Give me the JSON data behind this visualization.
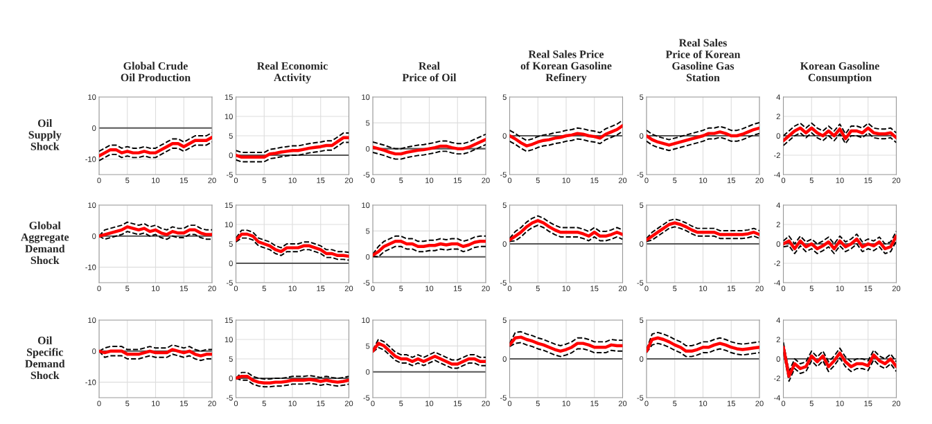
{
  "chart_data": [
    {
      "type": "line",
      "title": "Global Crude\nOil Production",
      "ylabel": "Oil\nSupply\nShock",
      "x": [
        0,
        1,
        2,
        3,
        4,
        5,
        6,
        7,
        8,
        9,
        10,
        11,
        12,
        13,
        14,
        15,
        16,
        17,
        18,
        19,
        20
      ],
      "xlim": [
        0,
        20
      ],
      "xticks": [
        0,
        5,
        10,
        15,
        20
      ],
      "ylim": [
        -15,
        10
      ],
      "yticks": [
        -10,
        0,
        10
      ],
      "grid": true,
      "ref_lines": [
        {
          "axis": "y",
          "value": 0,
          "color": "#555555"
        }
      ],
      "series": [
        {
          "color": "#ff0000",
          "line_style": "solid",
          "values": [
            -9,
            -8,
            -7,
            -7,
            -8,
            -7.5,
            -8,
            -8,
            -7.5,
            -8,
            -8,
            -7,
            -6,
            -5,
            -5,
            -6,
            -5,
            -4,
            -4,
            -4,
            -3
          ]
        },
        {
          "color": "#000000",
          "line_style": "dashed",
          "values": [
            -7.5,
            -6.5,
            -5.5,
            -5.5,
            -6.5,
            -6,
            -6.5,
            -6.5,
            -6,
            -6.5,
            -6.5,
            -5.5,
            -4.5,
            -3.5,
            -3.5,
            -4.5,
            -3.5,
            -2.5,
            -2.5,
            -2.5,
            -1.5
          ]
        },
        {
          "color": "#000000",
          "line_style": "dashed",
          "values": [
            -10.5,
            -9.5,
            -8.5,
            -8.5,
            -9.5,
            -9,
            -9.5,
            -9.5,
            -9,
            -9.5,
            -9.5,
            -8.5,
            -7.5,
            -6.5,
            -6.5,
            -7.5,
            -6.5,
            -5.5,
            -5.5,
            -5.5,
            -4.5
          ]
        }
      ]
    },
    {
      "type": "line",
      "title": "Real Economic\nActivity",
      "x": [
        0,
        1,
        2,
        3,
        4,
        5,
        6,
        7,
        8,
        9,
        10,
        11,
        12,
        13,
        14,
        15,
        16,
        17,
        18,
        19,
        20
      ],
      "xlim": [
        0,
        20
      ],
      "xticks": [
        0,
        5,
        10,
        15,
        20
      ],
      "ylim": [
        -5,
        15
      ],
      "yticks": [
        -5,
        0,
        5,
        10,
        15
      ],
      "grid": true,
      "ref_lines": [
        {
          "axis": "y",
          "value": 0,
          "color": "#555555"
        }
      ],
      "series": [
        {
          "color": "#ff0000",
          "line_style": "solid",
          "values": [
            0,
            -0.5,
            -0.5,
            -0.5,
            -0.5,
            -0.5,
            0.3,
            0.5,
            0.8,
            1,
            1.2,
            1.2,
            1.5,
            1.8,
            2,
            2.2,
            2.5,
            2.5,
            3.5,
            4.5,
            4.5
          ]
        },
        {
          "color": "#000000",
          "line_style": "dashed",
          "values": [
            1.2,
            0.7,
            0.7,
            0.7,
            0.7,
            0.7,
            1.5,
            1.7,
            2,
            2.2,
            2.4,
            2.4,
            2.7,
            3,
            3.2,
            3.4,
            3.7,
            3.7,
            4.7,
            5.7,
            5.7
          ]
        },
        {
          "color": "#000000",
          "line_style": "dashed",
          "values": [
            -1.2,
            -1.7,
            -1.7,
            -1.7,
            -1.7,
            -1.7,
            -0.9,
            -0.7,
            -0.4,
            -0.2,
            0,
            0,
            0.3,
            0.6,
            0.8,
            1,
            1.3,
            1.3,
            2.3,
            3.3,
            3.3
          ]
        }
      ]
    },
    {
      "type": "line",
      "title": "Real\nPrice of Oil",
      "x": [
        0,
        1,
        2,
        3,
        4,
        5,
        6,
        7,
        8,
        9,
        10,
        11,
        12,
        13,
        14,
        15,
        16,
        17,
        18,
        19,
        20
      ],
      "xlim": [
        0,
        20
      ],
      "xticks": [
        0,
        5,
        10,
        15,
        20
      ],
      "ylim": [
        -5,
        10
      ],
      "yticks": [
        -5,
        0,
        5,
        10
      ],
      "grid": true,
      "ref_lines": [
        {
          "axis": "y",
          "value": 0,
          "color": "#555555"
        }
      ],
      "series": [
        {
          "color": "#ff0000",
          "line_style": "solid",
          "values": [
            0.3,
            0,
            -0.3,
            -0.7,
            -1,
            -1,
            -0.7,
            -0.5,
            -0.3,
            -0.2,
            0,
            0.2,
            0.5,
            0.5,
            0.2,
            0,
            0,
            0.3,
            0.8,
            1.3,
            1.8
          ]
        },
        {
          "color": "#000000",
          "line_style": "dashed",
          "values": [
            1.3,
            1,
            0.7,
            0.3,
            0,
            0,
            0.3,
            0.5,
            0.7,
            0.8,
            1,
            1.2,
            1.5,
            1.5,
            1.2,
            1,
            1,
            1.3,
            1.8,
            2.3,
            2.8
          ]
        },
        {
          "color": "#000000",
          "line_style": "dashed",
          "values": [
            -0.7,
            -1,
            -1.3,
            -1.7,
            -2,
            -2,
            -1.7,
            -1.5,
            -1.3,
            -1.2,
            -1,
            -0.8,
            -0.5,
            -0.5,
            -0.8,
            -1,
            -1,
            -0.7,
            -0.2,
            0.3,
            0.8
          ]
        }
      ]
    },
    {
      "type": "line",
      "title": "Real Sales Price\nof Korean Gasoline\nRefinery",
      "x": [
        0,
        1,
        2,
        3,
        4,
        5,
        6,
        7,
        8,
        9,
        10,
        11,
        12,
        13,
        14,
        15,
        16,
        17,
        18,
        19,
        20
      ],
      "xlim": [
        0,
        20
      ],
      "xticks": [
        0,
        5,
        10,
        15,
        20
      ],
      "ylim": [
        -5,
        5
      ],
      "yticks": [
        -5,
        0,
        5
      ],
      "grid": true,
      "ref_lines": [
        {
          "axis": "y",
          "value": 0,
          "color": "#555555"
        }
      ],
      "series": [
        {
          "color": "#ff0000",
          "line_style": "solid",
          "values": [
            0,
            -0.4,
            -0.9,
            -1.3,
            -1.1,
            -0.8,
            -0.6,
            -0.5,
            -0.3,
            -0.2,
            0,
            0.1,
            0.3,
            0.2,
            0,
            -0.1,
            -0.3,
            0.2,
            0.5,
            0.8,
            1.3
          ]
        },
        {
          "color": "#000000",
          "line_style": "dashed",
          "values": [
            0.7,
            0.3,
            -0.2,
            -0.6,
            -0.4,
            -0.1,
            0.1,
            0.2,
            0.4,
            0.5,
            0.7,
            0.8,
            1,
            0.9,
            0.7,
            0.6,
            0.4,
            0.9,
            1.2,
            1.5,
            2
          ]
        },
        {
          "color": "#000000",
          "line_style": "dashed",
          "values": [
            -0.7,
            -1.1,
            -1.6,
            -2,
            -1.8,
            -1.5,
            -1.3,
            -1.2,
            -1,
            -0.9,
            -0.7,
            -0.6,
            -0.4,
            -0.5,
            -0.7,
            -0.8,
            -1,
            -0.5,
            -0.2,
            0.1,
            0.6
          ]
        }
      ]
    },
    {
      "type": "line",
      "title": "Real Sales\nPrice of Korean\nGasoline Gas\nStation",
      "x": [
        0,
        1,
        2,
        3,
        4,
        5,
        6,
        7,
        8,
        9,
        10,
        11,
        12,
        13,
        14,
        15,
        16,
        17,
        18,
        19,
        20
      ],
      "xlim": [
        0,
        20
      ],
      "xticks": [
        0,
        5,
        10,
        15,
        20
      ],
      "ylim": [
        -5,
        5
      ],
      "yticks": [
        -5,
        0,
        5
      ],
      "grid": true,
      "ref_lines": [
        {
          "axis": "y",
          "value": 0,
          "color": "#555555"
        }
      ],
      "series": [
        {
          "color": "#ff0000",
          "line_style": "solid",
          "values": [
            0,
            -0.5,
            -0.8,
            -1,
            -1.2,
            -1,
            -0.8,
            -0.6,
            -0.4,
            -0.2,
            0,
            0.3,
            0.3,
            0.5,
            0.3,
            0,
            0,
            0.2,
            0.5,
            0.8,
            1
          ]
        },
        {
          "color": "#000000",
          "line_style": "dashed",
          "values": [
            0.7,
            0.2,
            -0.1,
            -0.3,
            -0.5,
            -0.3,
            -0.1,
            0.1,
            0.3,
            0.5,
            0.7,
            1,
            1,
            1.2,
            1,
            0.7,
            0.7,
            0.9,
            1.2,
            1.5,
            1.7
          ]
        },
        {
          "color": "#000000",
          "line_style": "dashed",
          "values": [
            -0.7,
            -1.2,
            -1.5,
            -1.7,
            -1.9,
            -1.7,
            -1.5,
            -1.3,
            -1.1,
            -0.9,
            -0.7,
            -0.4,
            -0.4,
            -0.2,
            -0.4,
            -0.7,
            -0.7,
            -0.5,
            -0.2,
            0.1,
            0.3
          ]
        }
      ]
    },
    {
      "type": "line",
      "title": "Korean Gasoline\nConsumption",
      "x": [
        0,
        1,
        2,
        3,
        4,
        5,
        6,
        7,
        8,
        9,
        10,
        11,
        12,
        13,
        14,
        15,
        16,
        17,
        18,
        19,
        20
      ],
      "xlim": [
        0,
        20
      ],
      "xticks": [
        0,
        5,
        10,
        15,
        20
      ],
      "ylim": [
        -4,
        4
      ],
      "yticks": [
        -4,
        -2,
        0,
        2,
        4
      ],
      "grid": true,
      "ref_lines": [
        {
          "axis": "y",
          "value": 0,
          "color": "#555555"
        }
      ],
      "series": [
        {
          "color": "#ff0000",
          "line_style": "solid",
          "values": [
            -0.5,
            0,
            0.5,
            0.8,
            0.3,
            0.8,
            0.3,
            0,
            0.5,
            0,
            0.7,
            -0.3,
            0.5,
            0.5,
            0.3,
            0.8,
            0.3,
            0.2,
            0.2,
            0.3,
            -0.2
          ]
        },
        {
          "color": "#000000",
          "line_style": "dashed",
          "values": [
            0,
            0.5,
            1,
            1.3,
            0.8,
            1.3,
            0.8,
            0.5,
            1,
            0.5,
            1.2,
            0.2,
            1,
            1,
            0.8,
            1.3,
            0.8,
            0.7,
            0.7,
            0.8,
            0.3
          ]
        },
        {
          "color": "#000000",
          "line_style": "dashed",
          "values": [
            -1,
            -0.5,
            0,
            0.3,
            -0.2,
            0.3,
            -0.2,
            -0.5,
            0,
            -0.5,
            0.2,
            -0.8,
            0,
            0,
            -0.2,
            0.3,
            -0.2,
            -0.3,
            -0.3,
            -0.2,
            -0.7
          ]
        }
      ]
    },
    {
      "type": "line",
      "ylabel": "Global\nAggregate\nDemand\nShock",
      "x": [
        0,
        1,
        2,
        3,
        4,
        5,
        6,
        7,
        8,
        9,
        10,
        11,
        12,
        13,
        14,
        15,
        16,
        17,
        18,
        19,
        20
      ],
      "xlim": [
        0,
        20
      ],
      "xticks": [
        0,
        5,
        10,
        15,
        20
      ],
      "ylim": [
        -15,
        10
      ],
      "yticks": [
        -10,
        0,
        10
      ],
      "grid": true,
      "ref_lines": [
        {
          "axis": "y",
          "value": 0,
          "color": "#555555"
        }
      ],
      "series": [
        {
          "color": "#ff0000",
          "line_style": "solid",
          "values": [
            0,
            0.5,
            1,
            1.5,
            2,
            3,
            2.5,
            2,
            2.5,
            1.5,
            2,
            1,
            0.5,
            1.5,
            1,
            1,
            2,
            2,
            1,
            0.5,
            0.5
          ]
        },
        {
          "color": "#000000",
          "line_style": "dashed",
          "values": [
            0,
            2,
            2.5,
            3,
            3.5,
            4.5,
            4,
            3.5,
            4,
            3,
            3.5,
            2.5,
            2,
            3,
            2.5,
            2.5,
            3.5,
            3.5,
            2.5,
            2,
            2
          ]
        },
        {
          "color": "#000000",
          "line_style": "dashed",
          "values": [
            0,
            -1,
            -0.5,
            0,
            0.5,
            1.5,
            1,
            0.5,
            1,
            0,
            0.5,
            -0.5,
            -1,
            0,
            -0.5,
            -0.5,
            0.5,
            0.5,
            -0.5,
            -1,
            -1
          ]
        }
      ]
    },
    {
      "type": "line",
      "x": [
        0,
        1,
        2,
        3,
        4,
        5,
        6,
        7,
        8,
        9,
        10,
        11,
        12,
        13,
        14,
        15,
        16,
        17,
        18,
        19,
        20
      ],
      "xlim": [
        0,
        20
      ],
      "xticks": [
        0,
        5,
        10,
        15,
        20
      ],
      "ylim": [
        -5,
        15
      ],
      "yticks": [
        -5,
        0,
        5,
        10,
        15
      ],
      "grid": true,
      "ref_lines": [
        {
          "axis": "y",
          "value": 0,
          "color": "#555555"
        }
      ],
      "series": [
        {
          "color": "#ff0000",
          "line_style": "solid",
          "values": [
            6,
            7.5,
            7.5,
            7,
            5.5,
            5,
            4.5,
            3.5,
            3,
            4,
            4,
            4,
            4.5,
            4.5,
            4,
            3.5,
            2.5,
            2.5,
            2,
            2,
            1.8
          ]
        },
        {
          "color": "#000000",
          "line_style": "dashed",
          "values": [
            6.5,
            8.5,
            8.5,
            8,
            6.5,
            6,
            5.5,
            4.5,
            4,
            5,
            5,
            5,
            5.5,
            5.5,
            5,
            4.5,
            3.5,
            3.5,
            3,
            3,
            2.8
          ]
        },
        {
          "color": "#000000",
          "line_style": "dashed",
          "values": [
            5.5,
            6.5,
            6.5,
            6,
            4.5,
            4,
            3.5,
            2.5,
            2,
            3,
            3,
            3,
            3.5,
            3.5,
            3,
            2.5,
            1.5,
            1.5,
            1,
            1,
            0.8
          ]
        }
      ]
    },
    {
      "type": "line",
      "x": [
        0,
        1,
        2,
        3,
        4,
        5,
        6,
        7,
        8,
        9,
        10,
        11,
        12,
        13,
        14,
        15,
        16,
        17,
        18,
        19,
        20
      ],
      "xlim": [
        0,
        20
      ],
      "xticks": [
        0,
        5,
        10,
        15,
        20
      ],
      "ylim": [
        -5,
        10
      ],
      "yticks": [
        -5,
        0,
        5,
        10
      ],
      "grid": true,
      "ref_lines": [
        {
          "axis": "y",
          "value": 0,
          "color": "#555555"
        }
      ],
      "series": [
        {
          "color": "#ff0000",
          "line_style": "solid",
          "values": [
            0.3,
            1,
            2,
            2.5,
            3,
            3,
            2.5,
            2.5,
            2,
            2,
            2.2,
            2.2,
            2.5,
            2.3,
            2.5,
            2.5,
            2,
            2.3,
            2.8,
            3,
            3
          ]
        },
        {
          "color": "#000000",
          "line_style": "dashed",
          "values": [
            0.5,
            2,
            3,
            3.5,
            4,
            4,
            3.5,
            3.5,
            3,
            3,
            3.2,
            3.2,
            3.5,
            3.3,
            3.5,
            3.5,
            3,
            3.3,
            3.8,
            4,
            4
          ]
        },
        {
          "color": "#000000",
          "line_style": "dashed",
          "values": [
            0.1,
            0,
            1,
            1.5,
            2,
            2,
            1.5,
            1.5,
            1,
            1,
            1.2,
            1.2,
            1.5,
            1.3,
            1.5,
            1.5,
            1,
            1.3,
            1.8,
            2,
            2
          ]
        }
      ]
    },
    {
      "type": "line",
      "x": [
        0,
        1,
        2,
        3,
        4,
        5,
        6,
        7,
        8,
        9,
        10,
        11,
        12,
        13,
        14,
        15,
        16,
        17,
        18,
        19,
        20
      ],
      "xlim": [
        0,
        20
      ],
      "xticks": [
        0,
        5,
        10,
        15,
        20
      ],
      "ylim": [
        -5,
        5
      ],
      "yticks": [
        -5,
        0,
        5
      ],
      "grid": true,
      "ref_lines": [
        {
          "axis": "y",
          "value": 0,
          "color": "#555555"
        }
      ],
      "series": [
        {
          "color": "#ff0000",
          "line_style": "solid",
          "values": [
            0.5,
            1,
            1.5,
            2.2,
            2.7,
            3,
            2.7,
            2.2,
            1.8,
            1.5,
            1.5,
            1.5,
            1.5,
            1.3,
            1,
            1.5,
            1,
            1,
            1.2,
            1.5,
            1.2
          ]
        },
        {
          "color": "#000000",
          "line_style": "dashed",
          "values": [
            0.7,
            1.6,
            2.1,
            2.8,
            3.3,
            3.6,
            3.3,
            2.8,
            2.4,
            2.1,
            2.1,
            2.1,
            2.1,
            1.9,
            1.6,
            2.1,
            1.6,
            1.6,
            1.8,
            2.1,
            1.8
          ]
        },
        {
          "color": "#000000",
          "line_style": "dashed",
          "values": [
            0.3,
            0.4,
            0.9,
            1.6,
            2.1,
            2.4,
            2.1,
            1.6,
            1.2,
            0.9,
            0.9,
            0.9,
            0.9,
            0.7,
            0.4,
            0.9,
            0.4,
            0.4,
            0.6,
            0.9,
            0.6
          ]
        }
      ]
    },
    {
      "type": "line",
      "x": [
        0,
        1,
        2,
        3,
        4,
        5,
        6,
        7,
        8,
        9,
        10,
        11,
        12,
        13,
        14,
        15,
        16,
        17,
        18,
        19,
        20
      ],
      "xlim": [
        0,
        20
      ],
      "xticks": [
        0,
        5,
        10,
        15,
        20
      ],
      "ylim": [
        -5,
        5
      ],
      "yticks": [
        -5,
        0,
        5
      ],
      "grid": true,
      "ref_lines": [
        {
          "axis": "y",
          "value": 0,
          "color": "#555555"
        }
      ],
      "series": [
        {
          "color": "#ff0000",
          "line_style": "solid",
          "values": [
            0.5,
            1,
            1.5,
            2,
            2.5,
            2.7,
            2.5,
            2.2,
            1.8,
            1.5,
            1.5,
            1.5,
            1.5,
            1.2,
            1.2,
            1.2,
            1.2,
            1.2,
            1.3,
            1.5,
            1.2
          ]
        },
        {
          "color": "#000000",
          "line_style": "dashed",
          "values": [
            0.7,
            1.5,
            2,
            2.5,
            3,
            3.2,
            3,
            2.7,
            2.3,
            2,
            2,
            2,
            2,
            1.7,
            1.7,
            1.7,
            1.7,
            1.7,
            1.8,
            2,
            1.7
          ]
        },
        {
          "color": "#000000",
          "line_style": "dashed",
          "values": [
            0.3,
            0.5,
            1,
            1.5,
            2,
            2.2,
            2,
            1.7,
            1.3,
            1,
            1,
            1,
            1,
            0.7,
            0.7,
            0.7,
            0.7,
            0.7,
            0.8,
            1,
            0.7
          ]
        }
      ]
    },
    {
      "type": "line",
      "x": [
        0,
        1,
        2,
        3,
        4,
        5,
        6,
        7,
        8,
        9,
        10,
        11,
        12,
        13,
        14,
        15,
        16,
        17,
        18,
        19,
        20
      ],
      "xlim": [
        0,
        20
      ],
      "xticks": [
        0,
        5,
        10,
        15,
        20
      ],
      "ylim": [
        -4,
        4
      ],
      "yticks": [
        -4,
        -2,
        0,
        2,
        4
      ],
      "grid": true,
      "ref_lines": [
        {
          "axis": "y",
          "value": 0,
          "color": "#555555"
        }
      ],
      "series": [
        {
          "color": "#ff0000",
          "line_style": "solid",
          "values": [
            0,
            0.3,
            -0.5,
            0.3,
            -0.3,
            0,
            -0.5,
            -0.2,
            0.2,
            -0.5,
            0.3,
            -0.3,
            0,
            0.5,
            -0.3,
            0,
            -0.2,
            0.2,
            -0.5,
            -0.3,
            0.8
          ]
        },
        {
          "color": "#000000",
          "line_style": "dashed",
          "values": [
            0.3,
            0.8,
            0,
            0.8,
            0.2,
            0.5,
            0,
            0.3,
            0.7,
            0,
            0.8,
            0.2,
            0.5,
            1,
            0.2,
            0.5,
            0.3,
            0.7,
            0,
            0.2,
            1.3
          ]
        },
        {
          "color": "#000000",
          "line_style": "dashed",
          "values": [
            -0.3,
            -0.2,
            -1,
            -0.2,
            -0.8,
            -0.5,
            -1,
            -0.7,
            -0.3,
            -1,
            -0.2,
            -0.8,
            -0.5,
            0,
            -0.8,
            -0.5,
            -0.7,
            -0.3,
            -1,
            -0.8,
            0.3
          ]
        }
      ]
    },
    {
      "type": "line",
      "ylabel": "Oil\nSpecific\nDemand\nShock",
      "x": [
        0,
        1,
        2,
        3,
        4,
        5,
        6,
        7,
        8,
        9,
        10,
        11,
        12,
        13,
        14,
        15,
        16,
        17,
        18,
        19,
        20
      ],
      "xlim": [
        0,
        20
      ],
      "xticks": [
        0,
        5,
        10,
        15,
        20
      ],
      "ylim": [
        -15,
        10
      ],
      "yticks": [
        -10,
        0,
        10
      ],
      "grid": true,
      "ref_lines": [
        {
          "axis": "y",
          "value": 0,
          "color": "#555555"
        }
      ],
      "series": [
        {
          "color": "#ff0000",
          "line_style": "solid",
          "values": [
            0,
            -0.5,
            0,
            0,
            0,
            -1,
            -1,
            -1,
            -0.5,
            0,
            -0.5,
            -0.5,
            -0.5,
            0.5,
            0,
            -0.5,
            0,
            -1,
            -1.5,
            -1,
            -1
          ]
        },
        {
          "color": "#000000",
          "line_style": "dashed",
          "values": [
            0,
            1,
            1.5,
            1.5,
            1.5,
            0.5,
            0.5,
            0.5,
            1,
            1.5,
            1,
            1,
            1,
            2,
            1.5,
            1,
            1.5,
            0.5,
            0,
            0.5,
            0.5
          ]
        },
        {
          "color": "#000000",
          "line_style": "dashed",
          "values": [
            0,
            -2,
            -1.5,
            -1.5,
            -1.5,
            -2.5,
            -2.5,
            -2.5,
            -2,
            -1.5,
            -2,
            -2,
            -2,
            -1,
            -1.5,
            -2,
            -1.5,
            -2.5,
            -3,
            -2.5,
            -2.5
          ]
        }
      ]
    },
    {
      "type": "line",
      "x": [
        0,
        1,
        2,
        3,
        4,
        5,
        6,
        7,
        8,
        9,
        10,
        11,
        12,
        13,
        14,
        15,
        16,
        17,
        18,
        19,
        20
      ],
      "xlim": [
        0,
        20
      ],
      "xticks": [
        0,
        5,
        10,
        15,
        20
      ],
      "ylim": [
        -5,
        15
      ],
      "yticks": [
        -5,
        0,
        5,
        10,
        15
      ],
      "grid": true,
      "ref_lines": [
        {
          "axis": "y",
          "value": 0,
          "color": "#555555"
        }
      ],
      "series": [
        {
          "color": "#ff0000",
          "line_style": "solid",
          "values": [
            0,
            0.5,
            0.5,
            -0.5,
            -1,
            -1.2,
            -1.2,
            -1,
            -1,
            -0.8,
            -0.5,
            -0.5,
            -0.5,
            -0.3,
            -0.5,
            -0.8,
            -0.5,
            -0.8,
            -1,
            -0.8,
            -0.5
          ]
        },
        {
          "color": "#000000",
          "line_style": "dashed",
          "values": [
            0,
            1.5,
            1.5,
            0.5,
            0,
            -0.2,
            -0.2,
            0,
            0,
            0.2,
            0.5,
            0.5,
            0.5,
            0.7,
            0.5,
            0.2,
            0.5,
            0.2,
            0,
            0.2,
            0.5
          ]
        },
        {
          "color": "#000000",
          "line_style": "dashed",
          "values": [
            0,
            -0.5,
            -0.5,
            -1.5,
            -2,
            -2.2,
            -2.2,
            -2,
            -2,
            -1.8,
            -1.5,
            -1.5,
            -1.5,
            -1.3,
            -1.5,
            -1.8,
            -1.5,
            -1.8,
            -2,
            -1.8,
            -1.5
          ]
        }
      ]
    },
    {
      "type": "line",
      "x": [
        0,
        1,
        2,
        3,
        4,
        5,
        6,
        7,
        8,
        9,
        10,
        11,
        12,
        13,
        14,
        15,
        16,
        17,
        18,
        19,
        20
      ],
      "xlim": [
        0,
        20
      ],
      "xticks": [
        0,
        5,
        10,
        15,
        20
      ],
      "ylim": [
        -5,
        10
      ],
      "yticks": [
        -5,
        0,
        5,
        10
      ],
      "grid": true,
      "ref_lines": [
        {
          "axis": "y",
          "value": 0,
          "color": "#555555"
        }
      ],
      "series": [
        {
          "color": "#ff0000",
          "line_style": "solid",
          "values": [
            4,
            5.5,
            5,
            4,
            3,
            2.5,
            2.5,
            2,
            2.5,
            2,
            2.5,
            3,
            2.5,
            2,
            1.5,
            1.5,
            2,
            2.5,
            2.5,
            2,
            2
          ]
        },
        {
          "color": "#000000",
          "line_style": "dashed",
          "values": [
            4.2,
            6.3,
            5.8,
            4.8,
            3.8,
            3.3,
            3.3,
            2.8,
            3.3,
            2.8,
            3.3,
            3.8,
            3.3,
            2.8,
            2.3,
            2.3,
            2.8,
            3.3,
            3.3,
            2.8,
            2.8
          ]
        },
        {
          "color": "#000000",
          "line_style": "dashed",
          "values": [
            3.8,
            4.7,
            4.2,
            3.2,
            2.2,
            1.7,
            1.7,
            1.2,
            1.7,
            1.2,
            1.7,
            2.2,
            1.7,
            1.2,
            0.7,
            0.7,
            1.2,
            1.7,
            1.7,
            1.2,
            1.2
          ]
        }
      ]
    },
    {
      "type": "line",
      "x": [
        0,
        1,
        2,
        3,
        4,
        5,
        6,
        7,
        8,
        9,
        10,
        11,
        12,
        13,
        14,
        15,
        16,
        17,
        18,
        19,
        20
      ],
      "xlim": [
        0,
        20
      ],
      "xticks": [
        0,
        5,
        10,
        15,
        20
      ],
      "ylim": [
        -5,
        5
      ],
      "yticks": [
        -5,
        0,
        5
      ],
      "grid": true,
      "ref_lines": [
        {
          "axis": "y",
          "value": 0,
          "color": "#555555"
        }
      ],
      "series": [
        {
          "color": "#ff0000",
          "line_style": "solid",
          "values": [
            1.8,
            2.7,
            2.8,
            2.5,
            2.3,
            2,
            1.8,
            1.5,
            1.2,
            1,
            1.2,
            1.5,
            2,
            2,
            1.8,
            1.5,
            1.5,
            1.5,
            1.8,
            1.7,
            1.7
          ]
        },
        {
          "color": "#000000",
          "line_style": "dashed",
          "values": [
            2,
            3.4,
            3.5,
            3.2,
            3,
            2.7,
            2.5,
            2.2,
            1.9,
            1.7,
            1.9,
            2.2,
            2.7,
            2.7,
            2.5,
            2.2,
            2.2,
            2.2,
            2.5,
            2.4,
            2.4
          ]
        },
        {
          "color": "#000000",
          "line_style": "dashed",
          "values": [
            1.6,
            2,
            2.1,
            1.8,
            1.6,
            1.3,
            1.1,
            0.8,
            0.5,
            0.3,
            0.5,
            0.8,
            1.3,
            1.3,
            1.1,
            0.8,
            0.8,
            0.8,
            1.1,
            1,
            1
          ]
        }
      ]
    },
    {
      "type": "line",
      "x": [
        0,
        1,
        2,
        3,
        4,
        5,
        6,
        7,
        8,
        9,
        10,
        11,
        12,
        13,
        14,
        15,
        16,
        17,
        18,
        19,
        20
      ],
      "xlim": [
        0,
        20
      ],
      "xticks": [
        0,
        5,
        10,
        15,
        20
      ],
      "ylim": [
        -5,
        5
      ],
      "yticks": [
        -5,
        0,
        5
      ],
      "grid": true,
      "ref_lines": [
        {
          "axis": "y",
          "value": 0,
          "color": "#555555"
        }
      ],
      "series": [
        {
          "color": "#ff0000",
          "line_style": "solid",
          "values": [
            1,
            2.5,
            2.7,
            2.5,
            2.2,
            1.8,
            1.5,
            1,
            1,
            1.2,
            1.5,
            1.5,
            1.8,
            2,
            1.8,
            1.5,
            1.3,
            1.2,
            1.3,
            1.4,
            1.5
          ]
        },
        {
          "color": "#000000",
          "line_style": "dashed",
          "values": [
            1.2,
            3.2,
            3.4,
            3.2,
            2.9,
            2.5,
            2.2,
            1.7,
            1.7,
            1.9,
            2.2,
            2.2,
            2.5,
            2.7,
            2.5,
            2.2,
            2,
            1.9,
            2,
            2.1,
            2.2
          ]
        },
        {
          "color": "#000000",
          "line_style": "dashed",
          "values": [
            0.8,
            1.8,
            2,
            1.8,
            1.5,
            1.1,
            0.8,
            0.3,
            0.3,
            0.5,
            0.8,
            0.8,
            1.1,
            1.3,
            1.1,
            0.8,
            0.6,
            0.5,
            0.6,
            0.7,
            0.8
          ]
        }
      ]
    },
    {
      "type": "line",
      "x": [
        0,
        1,
        2,
        3,
        4,
        5,
        6,
        7,
        8,
        9,
        10,
        11,
        12,
        13,
        14,
        15,
        16,
        17,
        18,
        19,
        20
      ],
      "xlim": [
        0,
        20
      ],
      "xticks": [
        0,
        5,
        10,
        15,
        20
      ],
      "ylim": [
        -4,
        4
      ],
      "yticks": [
        -4,
        -2,
        0,
        2,
        4
      ],
      "grid": true,
      "ref_lines": [
        {
          "axis": "y",
          "value": 0,
          "color": "#555555"
        }
      ],
      "series": [
        {
          "color": "#ff0000",
          "line_style": "solid",
          "values": [
            1.2,
            -1.8,
            -0.5,
            -1,
            -0.8,
            0.3,
            -0.3,
            0.3,
            -0.8,
            -0.2,
            0.6,
            -0.3,
            -0.8,
            -0.5,
            -0.5,
            -0.7,
            0.4,
            -0.2,
            -0.5,
            0,
            -0.8
          ]
        },
        {
          "color": "#000000",
          "line_style": "dashed",
          "values": [
            1.7,
            -1.3,
            0,
            -0.5,
            -0.3,
            0.8,
            0.2,
            0.8,
            -0.3,
            0.3,
            1.1,
            0.2,
            -0.3,
            0,
            0,
            -0.2,
            0.9,
            0.3,
            0,
            0.5,
            -0.3
          ]
        },
        {
          "color": "#000000",
          "line_style": "dashed",
          "values": [
            0.7,
            -2.3,
            -1,
            -1.5,
            -1.3,
            -0.2,
            -0.8,
            -0.2,
            -1.3,
            -0.7,
            0.1,
            -0.8,
            -1.3,
            -1,
            -1,
            -1.2,
            -0.1,
            -0.7,
            -1,
            -0.5,
            -1.3
          ]
        }
      ]
    }
  ]
}
